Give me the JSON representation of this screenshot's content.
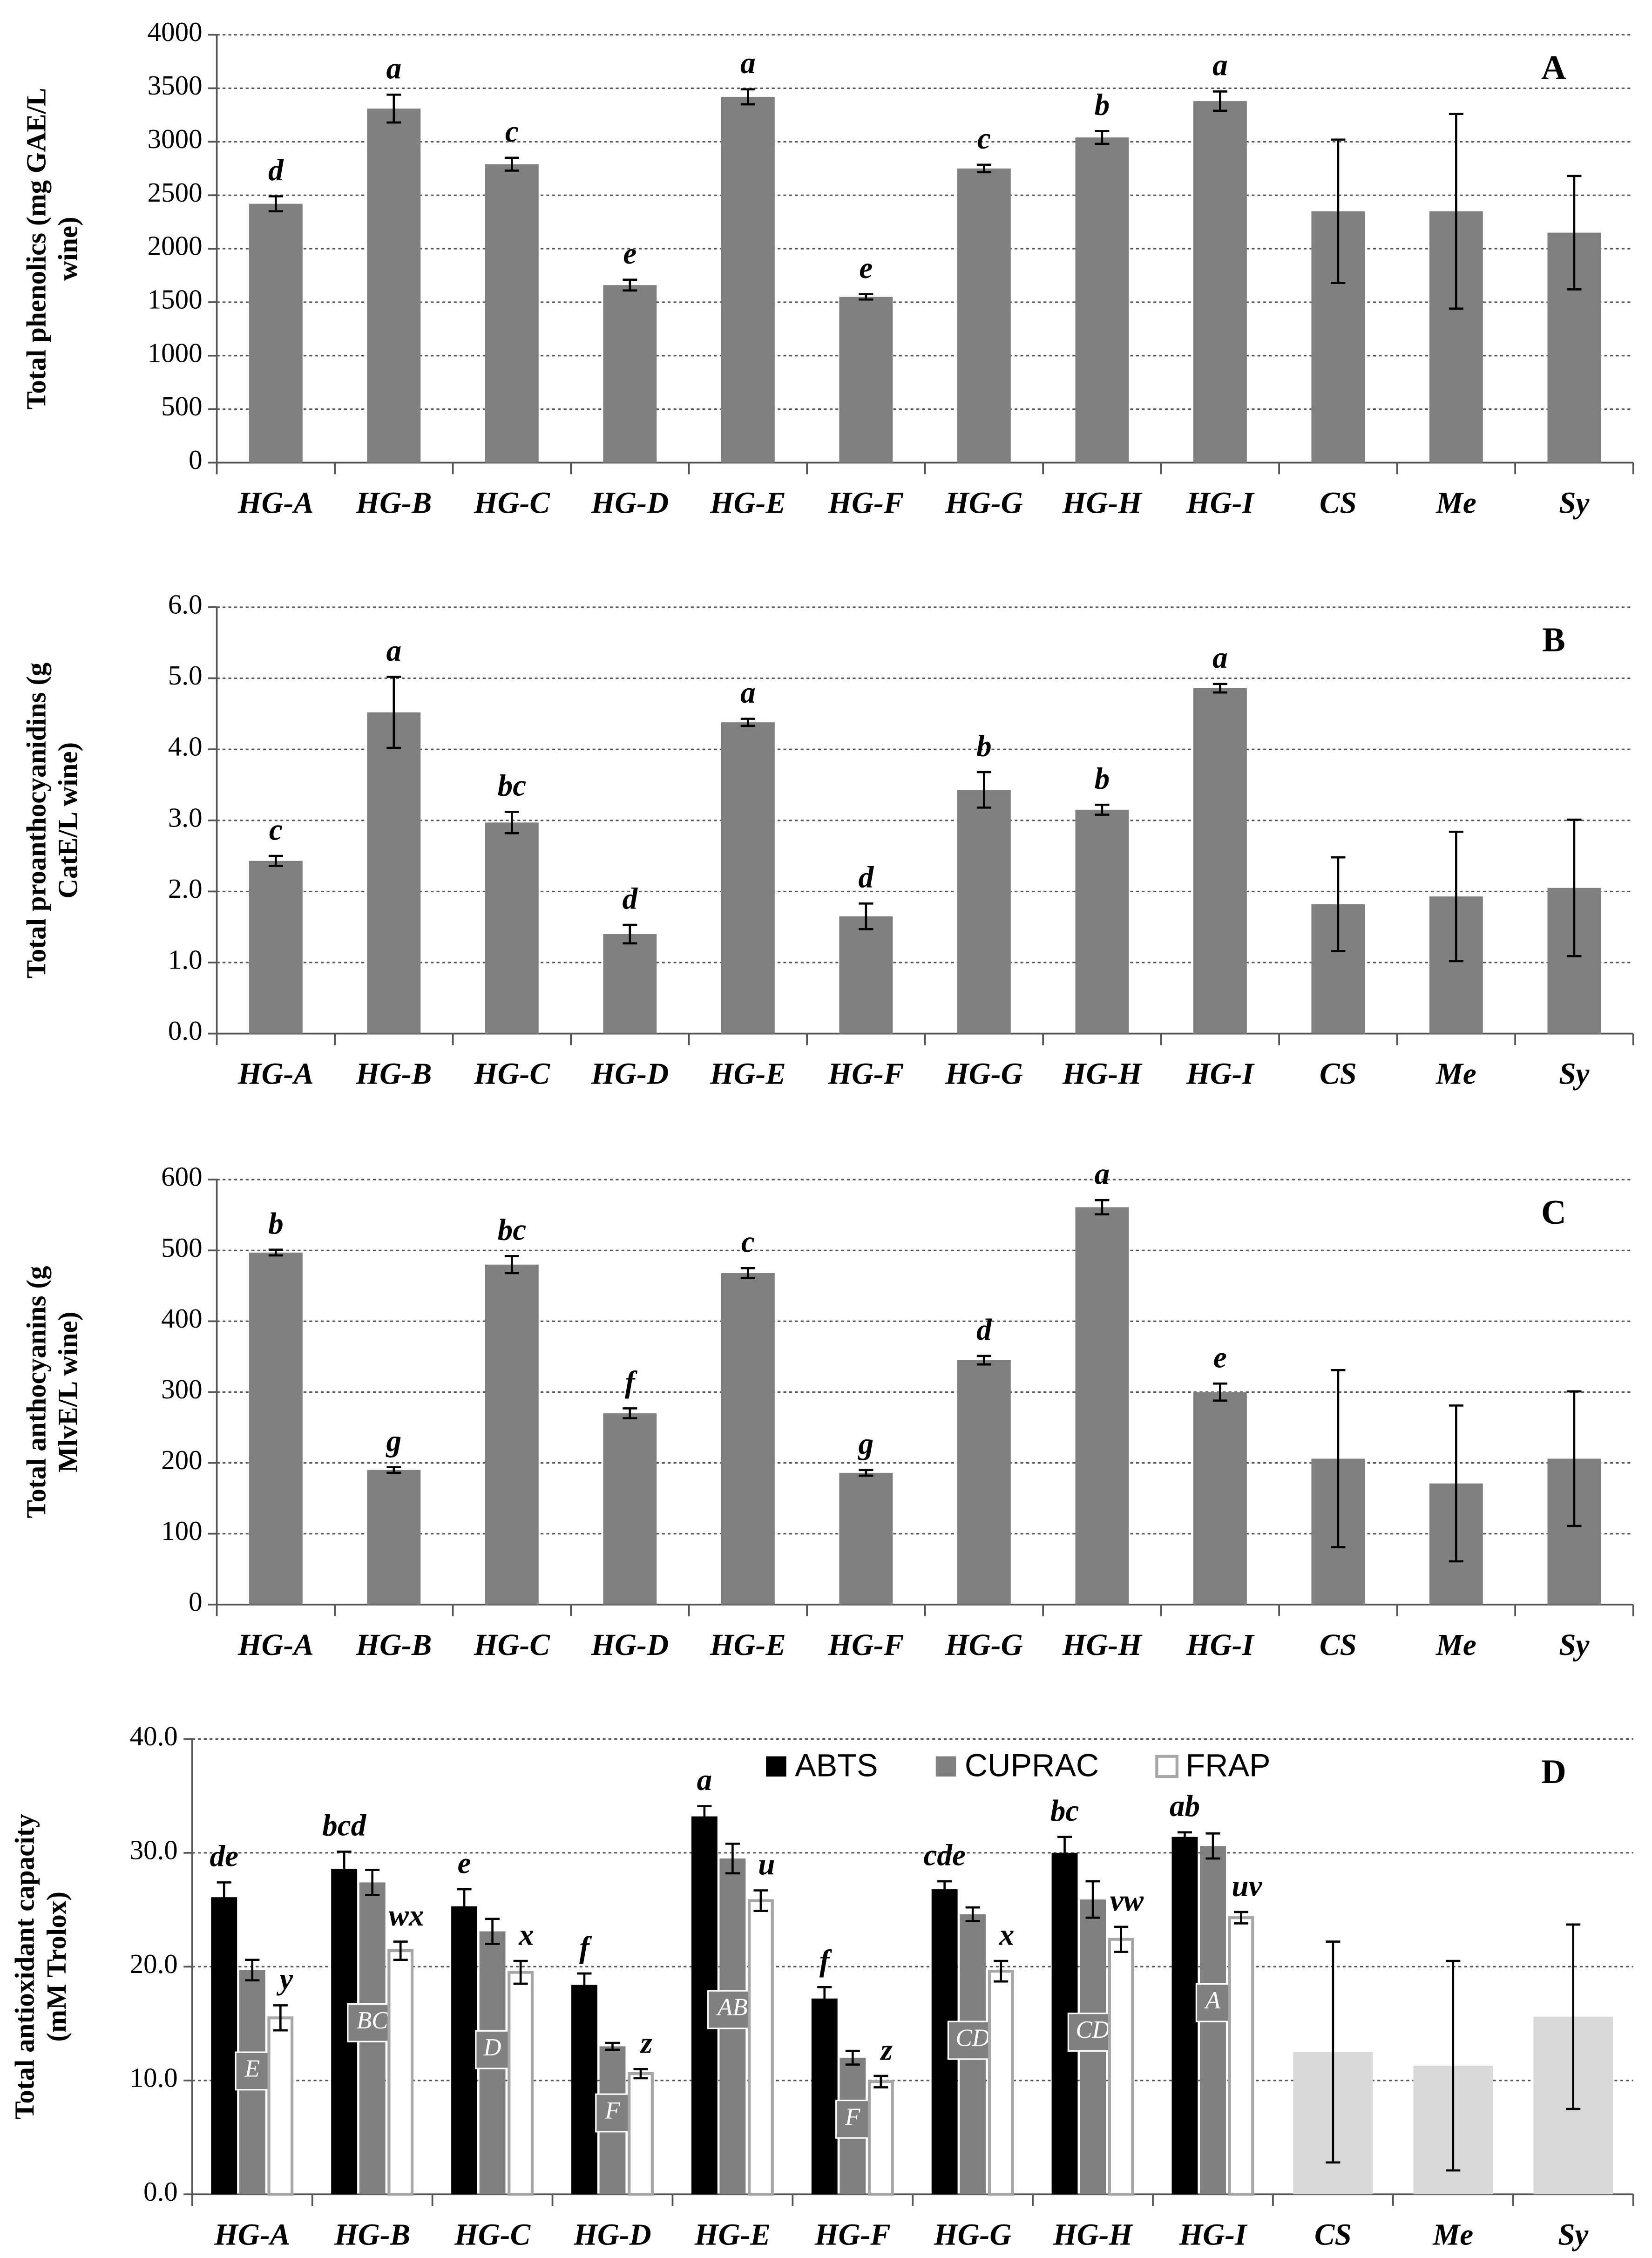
{
  "chart_data": [
    {
      "type": "bar",
      "panel_label": "A",
      "ylabel": [
        "Total phenolics (mg GAE/L",
        "wine)"
      ],
      "categories": [
        "HG-A",
        "HG-B",
        "HG-C",
        "HG-D",
        "HG-E",
        "HG-F",
        "HG-G",
        "HG-H",
        "HG-I",
        "CS",
        "Me",
        "Sy"
      ],
      "series": [
        {
          "color": "#808080",
          "values": [
            2420,
            3310,
            2790,
            1660,
            3420,
            1550,
            2750,
            3040,
            3380,
            2350,
            2350,
            2150
          ],
          "errors": [
            70,
            130,
            60,
            50,
            70,
            25,
            35,
            60,
            90,
            670,
            910,
            530
          ],
          "annotations": [
            "d",
            "a",
            "c",
            "e",
            "a",
            "e",
            "c",
            "b",
            "a",
            null,
            null,
            null
          ]
        }
      ],
      "ylim": [
        0,
        4000
      ],
      "yticks": [
        0,
        500,
        1000,
        1500,
        2000,
        2500,
        3000,
        3500,
        4000
      ],
      "grid": true
    },
    {
      "type": "bar",
      "panel_label": "B",
      "ylabel": [
        "Total proanthocyanidins (g",
        "CatE/L wine)"
      ],
      "categories": [
        "HG-A",
        "HG-B",
        "HG-C",
        "HG-D",
        "HG-E",
        "HG-F",
        "HG-G",
        "HG-H",
        "HG-I",
        "CS",
        "Me",
        "Sy"
      ],
      "series": [
        {
          "color": "#808080",
          "values": [
            2.43,
            4.52,
            2.97,
            1.4,
            4.38,
            1.65,
            3.43,
            3.15,
            4.86,
            1.82,
            1.93,
            2.05
          ],
          "errors": [
            0.07,
            0.5,
            0.15,
            0.13,
            0.05,
            0.18,
            0.25,
            0.07,
            0.06,
            0.66,
            0.91,
            0.96
          ],
          "annotations": [
            "c",
            "a",
            "bc",
            "d",
            "a",
            "d",
            "b",
            "b",
            "a",
            null,
            null,
            null
          ]
        }
      ],
      "ylim": [
        0,
        6
      ],
      "yticks": [
        {
          "value": 0,
          "label": "0.0"
        },
        {
          "value": 1,
          "label": "1.0"
        },
        {
          "value": 2,
          "label": "2.0"
        },
        {
          "value": 3,
          "label": "3.0"
        },
        {
          "value": 4,
          "label": "4.0"
        },
        {
          "value": 5,
          "label": "5.0"
        },
        {
          "value": 6,
          "label": "6.0"
        }
      ],
      "grid": true
    },
    {
      "type": "bar",
      "panel_label": "C",
      "ylabel": [
        "Total anthocyanins (g",
        "MlvE/L wine)"
      ],
      "categories": [
        "HG-A",
        "HG-B",
        "HG-C",
        "HG-D",
        "HG-E",
        "HG-F",
        "HG-G",
        "HG-H",
        "HG-I",
        "CS",
        "Me",
        "Sy"
      ],
      "series": [
        {
          "color": "#808080",
          "values": [
            497,
            190,
            480,
            270,
            468,
            186,
            345,
            561,
            300,
            206,
            171,
            206
          ],
          "errors": [
            4,
            4,
            12,
            7,
            7,
            4,
            6,
            10,
            12,
            125,
            110,
            95
          ],
          "annotations": [
            "b",
            "g",
            "bc",
            "f",
            "c",
            "g",
            "d",
            "a",
            "e",
            null,
            null,
            null
          ]
        }
      ],
      "ylim": [
        0,
        600
      ],
      "yticks": [
        0,
        100,
        200,
        300,
        400,
        500,
        600
      ],
      "grid": true
    },
    {
      "type": "bar",
      "panel_label": "D",
      "ylabel": [
        "Total antioxidant capacity",
        "(mM Trolox)"
      ],
      "categories": [
        "HG-A",
        "HG-B",
        "HG-C",
        "HG-D",
        "HG-E",
        "HG-F",
        "HG-G",
        "HG-H",
        "HG-I",
        "CS",
        "Me",
        "Sy"
      ],
      "legend": "top",
      "series": [
        {
          "name": "ABTS",
          "color": "#000000",
          "values": [
            26.1,
            28.6,
            25.3,
            18.4,
            33.2,
            17.2,
            26.8,
            30.0,
            31.4,
            null,
            null,
            null
          ],
          "errors": [
            1.3,
            1.5,
            1.5,
            1.0,
            0.9,
            1.0,
            0.7,
            1.4,
            0.4,
            null,
            null,
            null
          ],
          "annotations": [
            "de",
            "bcd",
            "e",
            "f",
            "a",
            "f",
            "cde",
            "bc",
            "ab",
            null,
            null,
            null
          ]
        },
        {
          "name": "CUPRAC",
          "color": "#808080",
          "values": [
            19.7,
            27.4,
            23.1,
            13.0,
            29.5,
            12.0,
            24.6,
            25.9,
            30.6,
            null,
            null,
            null
          ],
          "errors": [
            0.9,
            1.1,
            1.1,
            0.3,
            1.3,
            0.6,
            0.6,
            1.6,
            1.1,
            null,
            null,
            null
          ],
          "box_labels": [
            "E",
            "BC",
            "D",
            "F",
            "AB",
            "F",
            "CD",
            "CD",
            "A",
            null,
            null,
            null
          ]
        },
        {
          "name": "FRAP",
          "color": "#ffffff",
          "values": [
            15.5,
            21.4,
            19.5,
            10.6,
            25.8,
            9.9,
            19.6,
            22.4,
            24.3,
            null,
            null,
            null
          ],
          "errors": [
            1.1,
            0.8,
            1.0,
            0.4,
            0.9,
            0.5,
            0.9,
            1.1,
            0.5,
            null,
            null,
            null
          ],
          "annotations": [
            "y",
            "wx",
            "x",
            "z",
            "u",
            "z",
            "x",
            "vw",
            "uv",
            null,
            null,
            null
          ]
        },
        {
          "color": "#d9d9d9",
          "values": [
            null,
            null,
            null,
            null,
            null,
            null,
            null,
            null,
            null,
            12.5,
            11.3,
            15.6
          ],
          "errors": [
            null,
            null,
            null,
            null,
            null,
            null,
            null,
            null,
            null,
            9.7,
            9.2,
            8.1
          ]
        }
      ],
      "ylim": [
        0,
        40
      ],
      "yticks": [
        {
          "value": 0,
          "label": "0.0"
        },
        {
          "value": 10,
          "label": "10.0"
        },
        {
          "value": 20,
          "label": "20.0"
        },
        {
          "value": 30,
          "label": "30.0"
        },
        {
          "value": 40,
          "label": "40.0"
        }
      ],
      "grid": true
    }
  ]
}
